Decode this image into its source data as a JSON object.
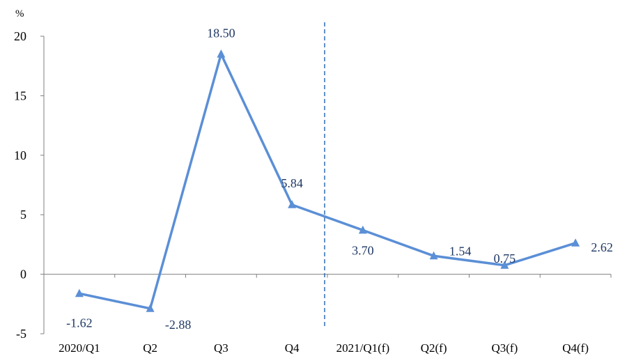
{
  "chart_data": {
    "type": "line",
    "unit_label": "%",
    "categories": [
      "2020/Q1",
      "Q2",
      "Q3",
      "Q4",
      "2021/Q1(f)",
      "Q2(f)",
      "Q3(f)",
      "Q4(f)"
    ],
    "series": [
      {
        "values": [
          -1.62,
          -2.88,
          18.5,
          5.84,
          3.7,
          1.54,
          0.75,
          2.62
        ],
        "labels": [
          "-1.62",
          "-2.88",
          "18.50",
          "5.84",
          "3.70",
          "1.54",
          "0.75",
          "2.62"
        ],
        "color": "#5b8fd6",
        "marker": "triangle"
      }
    ],
    "y_ticks": [
      -5,
      0,
      5,
      10,
      15,
      20
    ],
    "ylim": [
      -5,
      20
    ],
    "forecast_divider": "between Q4 and 2021/Q1(f)",
    "divider_color": "#2e6db3",
    "label_color": "#1f3864",
    "grid": false,
    "legend": false
  }
}
